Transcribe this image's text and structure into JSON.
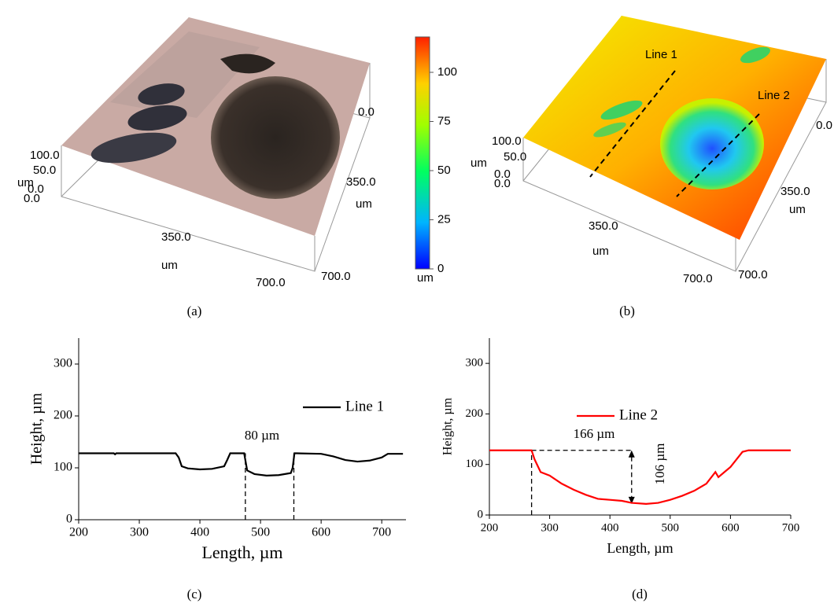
{
  "panels": [
    {
      "panel_label": "(a)",
      "labels": [
        "0.0",
        "350.0",
        "um",
        "700.0",
        "100.0",
        "50.0",
        "um",
        "0.0",
        "0.0",
        "350.0",
        "um",
        "700.0"
      ]
    },
    {
      "panel_label": "(b)",
      "labels": [
        "Line 1",
        "Line 2",
        "0.0",
        "100.0",
        "um",
        "50.0",
        "0.0",
        "0.0",
        "350.0",
        "um",
        "350.0",
        "um",
        "700.0",
        "700.0"
      ]
    }
  ],
  "colorbar": {
    "lim": [
      0,
      118
    ],
    "ticks": [
      0,
      25,
      50,
      75,
      100
    ],
    "unit": "um"
  },
  "chart_data": [
    {
      "type": "line",
      "panel_label": "(c)",
      "xlabel": "Length, µm",
      "ylabel": "Height, µm",
      "xlim": [
        200,
        740
      ],
      "ylim": [
        0,
        350
      ],
      "xticks": [
        200,
        300,
        400,
        500,
        600,
        700
      ],
      "yticks": [
        0,
        100,
        200,
        300
      ],
      "legend": "right",
      "series": [
        {
          "name": "Line 1",
          "color": "#000000",
          "x": [
            200,
            258,
            260,
            262,
            360,
            365,
            370,
            380,
            400,
            420,
            440,
            445,
            450,
            470,
            473,
            478,
            490,
            510,
            530,
            550,
            553,
            556,
            560,
            600,
            620,
            640,
            660,
            680,
            700,
            710,
            735
          ],
          "values": [
            128,
            128,
            126,
            128,
            128,
            120,
            103,
            99,
            97,
            98,
            103,
            115,
            128,
            128,
            128,
            95,
            88,
            85,
            86,
            90,
            100,
            128,
            128,
            127,
            122,
            115,
            112,
            114,
            120,
            127,
            127
          ]
        }
      ],
      "guides": [
        {
          "x": [
            475,
            475
          ],
          "y": [
            0,
            128
          ]
        },
        {
          "x": [
            555,
            555
          ],
          "y": [
            0,
            128
          ]
        }
      ],
      "annotations": [
        "80 µm"
      ]
    },
    {
      "type": "line",
      "panel_label": "(d)",
      "xlabel": "Length, µm",
      "ylabel": "Height, µm",
      "xlim": [
        200,
        700
      ],
      "ylim": [
        0,
        350
      ],
      "xticks": [
        200,
        300,
        400,
        500,
        600,
        700
      ],
      "yticks": [
        0,
        100,
        200,
        300
      ],
      "legend": "right",
      "series": [
        {
          "name": "Line 2",
          "color": "#ff0000",
          "x": [
            200,
            270,
            275,
            285,
            300,
            320,
            340,
            360,
            380,
            400,
            420,
            436,
            460,
            480,
            500,
            520,
            540,
            560,
            575,
            580,
            590,
            600,
            610,
            620,
            630,
            700
          ],
          "values": [
            128,
            128,
            110,
            85,
            78,
            62,
            50,
            40,
            32,
            30,
            28,
            24,
            22,
            24,
            30,
            38,
            48,
            62,
            85,
            75,
            85,
            95,
            110,
            125,
            128,
            128
          ]
        }
      ],
      "guides": [
        {
          "x": [
            270,
            270
          ],
          "y": [
            0,
            128
          ]
        },
        {
          "x": [
            270,
            436
          ],
          "y": [
            128,
            128
          ]
        }
      ],
      "arrow": {
        "x": [
          436,
          436
        ],
        "y": [
          128,
          22
        ]
      },
      "annotations": [
        "166 µm",
        "106 µm"
      ]
    }
  ]
}
